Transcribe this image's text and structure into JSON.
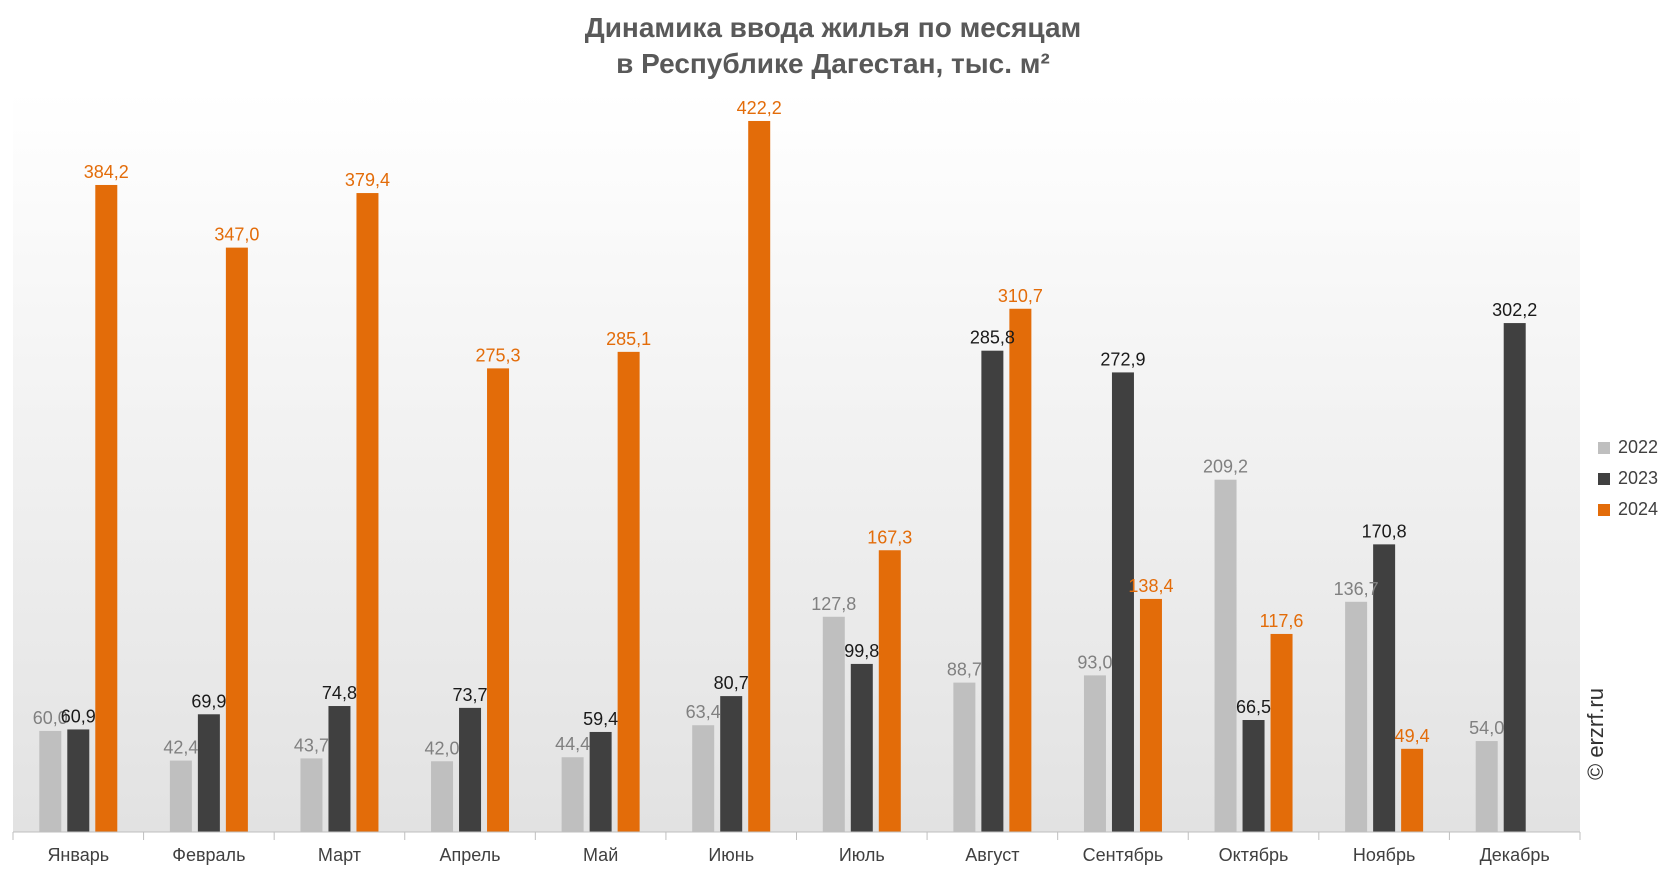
{
  "title_line1": "Динамика ввода жилья по месяцам",
  "title_line2": "в Республике Дагестан, тыс. м²",
  "watermark": "© erzrf.ru",
  "colors": {
    "s2022": "#bfbfbf",
    "s2023": "#404040",
    "s2024": "#e36c09",
    "label2022": "#808080",
    "label2023": "#1a1a1a",
    "label2024": "#e36c09"
  },
  "chart_data": {
    "type": "bar",
    "title": "Динамика ввода жилья по месяцам в Республике Дагестан, тыс. м²",
    "categories": [
      "Январь",
      "Февраль",
      "Март",
      "Апрель",
      "Май",
      "Июнь",
      "Июль",
      "Август",
      "Сентябрь",
      "Октябрь",
      "Ноябрь",
      "Декабрь"
    ],
    "series": [
      {
        "name": "2022",
        "values": [
          60.0,
          42.4,
          43.7,
          42.0,
          44.4,
          63.4,
          127.8,
          88.7,
          93.0,
          209.2,
          136.7,
          54.0
        ],
        "labels": [
          "60,0",
          "42,4",
          "43,7",
          "42,0",
          "44,4",
          "63,4",
          "127,8",
          "88,7",
          "93,0",
          "209,2",
          "136,7",
          "54,0"
        ]
      },
      {
        "name": "2023",
        "values": [
          60.9,
          69.9,
          74.8,
          73.7,
          59.4,
          80.7,
          99.8,
          285.8,
          272.9,
          66.5,
          170.8,
          302.2
        ],
        "labels": [
          "60,9",
          "69,9",
          "74,8",
          "73,7",
          "59,4",
          "80,7",
          "99,8",
          "285,8",
          "272,9",
          "66,5",
          "170,8",
          "302,2"
        ]
      },
      {
        "name": "2024",
        "values": [
          384.2,
          347.0,
          379.4,
          275.3,
          285.1,
          422.2,
          167.3,
          310.7,
          138.4,
          117.6,
          49.4,
          null
        ],
        "labels": [
          "384,2",
          "347,0",
          "379,4",
          "275,3",
          "285,1",
          "422,2",
          "167,3",
          "310,7",
          "138,4",
          "117,6",
          "49,4",
          ""
        ]
      }
    ],
    "ylim": [
      0,
      440
    ],
    "legend": "right",
    "grid": false
  }
}
